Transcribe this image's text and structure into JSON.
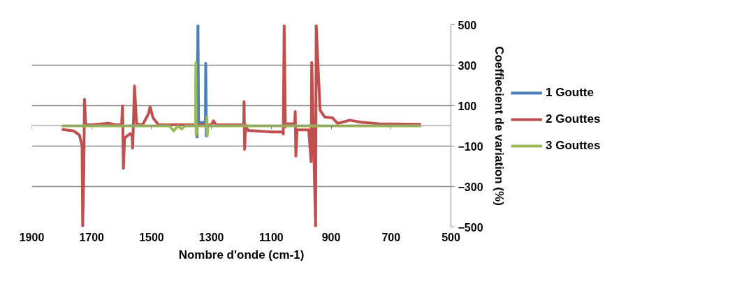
{
  "chart_data": {
    "type": "line",
    "xlabel": "Nombre d'onde (cm-1)",
    "ylabel": "Coeffiecient de variation (%)",
    "xlim": [
      1900,
      500
    ],
    "xticks": [
      1900,
      1700,
      1500,
      1300,
      1100,
      900,
      700,
      500
    ],
    "ylim": [
      -500,
      500
    ],
    "yticks": [
      -500,
      -300,
      -100,
      100,
      300,
      500
    ],
    "grid": "y",
    "legend": "right",
    "marker": "none",
    "line_style": "solid",
    "series": [
      {
        "name": "1 Goutte",
        "color": "#4a7ebb",
        "x": [
          1348,
          1345,
          1343,
          1320,
          1319,
          1317
        ],
        "values": [
          -61,
          500,
          16,
          16,
          309,
          -56
        ]
      },
      {
        "name": "2 Gouttes",
        "color": "#c0504d",
        "x": [
          1800,
          1760,
          1741,
          1732,
          1730,
          1726,
          1724,
          1720,
          1700,
          1644,
          1620,
          1600,
          1597,
          1596,
          1594,
          1590,
          1571,
          1565,
          1563,
          1557,
          1550,
          1530,
          1510,
          1505,
          1495,
          1477,
          1400,
          1356,
          1300,
          1293,
          1285,
          1240,
          1192,
          1191,
          1189,
          1186,
          1178,
          1100,
          1062,
          1060,
          1057,
          1053,
          1045,
          1022,
          1020,
          1018,
          1014,
          1007,
          975,
          967,
          965,
          960,
          952,
          950,
          944,
          937,
          922,
          896,
          878,
          838,
          800,
          741,
          600
        ],
        "values": [
          -17,
          -25,
          -45,
          -100,
          -500,
          -200,
          131,
          5,
          5,
          13,
          5,
          5,
          98,
          20,
          -210,
          -60,
          -38,
          -50,
          -110,
          197,
          10,
          5,
          60,
          94,
          40,
          5,
          5,
          5,
          5,
          25,
          5,
          5,
          5,
          120,
          -116,
          5,
          -22,
          -30,
          -30,
          -40,
          500,
          -5,
          10,
          10,
          71,
          -149,
          -20,
          -20,
          -20,
          -177,
          313,
          10,
          -500,
          500,
          300,
          77,
          44,
          40,
          12,
          28,
          18,
          10,
          8
        ]
      },
      {
        "name": "3 Gouttes",
        "color": "#9bbb59",
        "x": [
          1800,
          1600,
          1440,
          1426,
          1412,
          1400,
          1388,
          1360,
          1353,
          1352,
          1351,
          1349,
          1330,
          1316,
          1315,
          1314,
          1312,
          1290,
          1100,
          900,
          600
        ],
        "values": [
          0,
          0,
          0,
          -25,
          0,
          -15,
          0,
          0,
          0,
          313,
          -45,
          0,
          0,
          0,
          44,
          -50,
          0,
          0,
          0,
          0,
          0
        ]
      }
    ]
  }
}
